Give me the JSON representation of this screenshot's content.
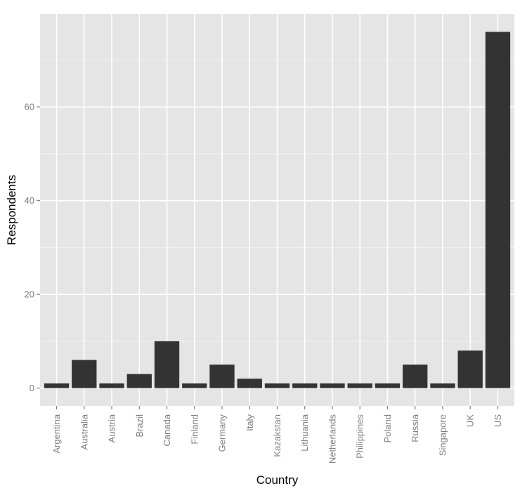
{
  "chart_data": {
    "type": "bar",
    "title": "",
    "xlabel": "Country",
    "ylabel": "Respondents",
    "categories": [
      "Argentina",
      "Australia",
      "Austria",
      "Brazil",
      "Canada",
      "Finland",
      "Germany",
      "Italy",
      "Kazakstan",
      "Lithuania",
      "Netherlands",
      "Philippines",
      "Poland",
      "Russia",
      "Singapore",
      "UK",
      "US"
    ],
    "values": [
      1,
      6,
      1,
      3,
      10,
      1,
      5,
      2,
      1,
      1,
      1,
      1,
      1,
      5,
      1,
      8,
      76
    ],
    "ylim": [
      -3.8,
      79.8
    ],
    "yticks": [
      0,
      20,
      40,
      60
    ],
    "grid": true,
    "legend": "none",
    "colors": {
      "panel": "#e5e5e5",
      "grid_major": "#ffffff",
      "grid_minor": "#f2f2f2",
      "bar": "#333333",
      "tick_text": "#7f7f7f"
    }
  }
}
